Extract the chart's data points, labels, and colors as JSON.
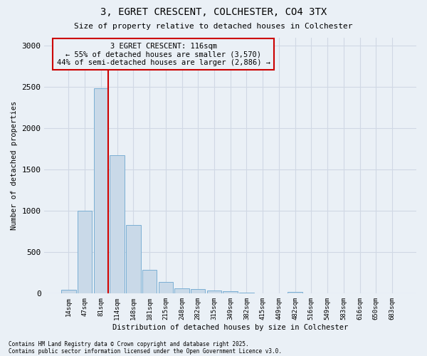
{
  "title": "3, EGRET CRESCENT, COLCHESTER, CO4 3TX",
  "subtitle": "Size of property relative to detached houses in Colchester",
  "xlabel": "Distribution of detached houses by size in Colchester",
  "ylabel": "Number of detached properties",
  "categories": [
    "14sqm",
    "47sqm",
    "81sqm",
    "114sqm",
    "148sqm",
    "181sqm",
    "215sqm",
    "248sqm",
    "282sqm",
    "315sqm",
    "349sqm",
    "382sqm",
    "415sqm",
    "449sqm",
    "482sqm",
    "516sqm",
    "549sqm",
    "583sqm",
    "616sqm",
    "650sqm",
    "683sqm"
  ],
  "values": [
    50,
    1005,
    2480,
    1670,
    830,
    290,
    140,
    65,
    55,
    40,
    25,
    10,
    5,
    0,
    20,
    0,
    0,
    0,
    0,
    0,
    0
  ],
  "bar_color": "#c9d9e8",
  "bar_edge_color": "#7bafd4",
  "grid_color": "#d0d8e4",
  "bg_color": "#eaf0f6",
  "vline_color": "#cc0000",
  "annotation_line1": "3 EGRET CRESCENT: 116sqm",
  "annotation_line2": "← 55% of detached houses are smaller (3,570)",
  "annotation_line3": "44% of semi-detached houses are larger (2,886) →",
  "annotation_box_color": "#cc0000",
  "ylim": [
    0,
    3100
  ],
  "yticks": [
    0,
    500,
    1000,
    1500,
    2000,
    2500,
    3000
  ],
  "footer1": "Contains HM Land Registry data © Crown copyright and database right 2025.",
  "footer2": "Contains public sector information licensed under the Open Government Licence v3.0."
}
